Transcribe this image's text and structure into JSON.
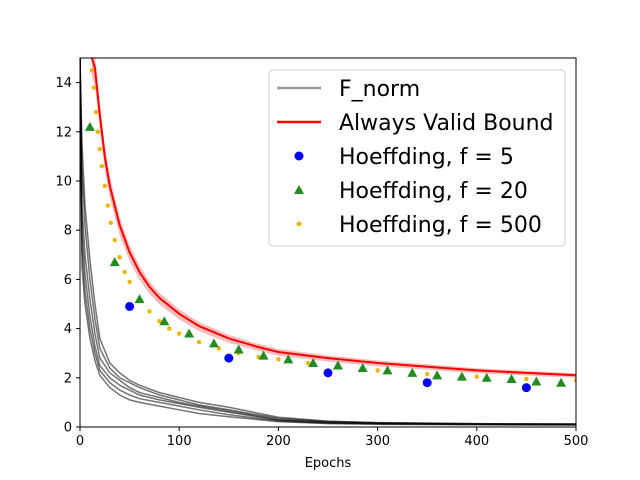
{
  "chart_data": {
    "type": "line",
    "xlabel": "Epochs",
    "ylabel": "",
    "xlim": [
      0,
      500
    ],
    "ylim": [
      0,
      15
    ],
    "x_ticks": [
      "0",
      "100",
      "200",
      "300",
      "400",
      "500"
    ],
    "y_ticks": [
      "0",
      "2",
      "4",
      "6",
      "8",
      "10",
      "12",
      "14"
    ],
    "x_tick_values": [
      0,
      100,
      200,
      300,
      400,
      500
    ],
    "y_tick_values": [
      0,
      2,
      4,
      6,
      8,
      10,
      12,
      14
    ],
    "legend_position": "top-right",
    "series": [
      {
        "name": "F_norm",
        "kind": "line",
        "color": "#000000",
        "legend_color": "#999999",
        "runs": [
          {
            "x": [
              0,
              2,
              5,
              10,
              15,
              20,
              30,
              40,
              50,
              60,
              80,
              100,
              120,
              150,
              200,
              250,
              300,
              400,
              500
            ],
            "y": [
              15,
              10.5,
              8.2,
              6.0,
              4.4,
              3.2,
              2.4,
              2.0,
              1.8,
              1.6,
              1.3,
              1.1,
              0.9,
              0.7,
              0.35,
              0.22,
              0.17,
              0.13,
              0.12
            ]
          },
          {
            "x": [
              0,
              2,
              5,
              10,
              15,
              20,
              30,
              40,
              50,
              60,
              80,
              100,
              120,
              150,
              200,
              250,
              300,
              400,
              500
            ],
            "y": [
              15,
              9.0,
              7.0,
              5.2,
              3.8,
              2.8,
              2.2,
              1.9,
              1.6,
              1.4,
              1.2,
              1.0,
              0.85,
              0.65,
              0.3,
              0.2,
              0.15,
              0.12,
              0.11
            ]
          },
          {
            "x": [
              0,
              2,
              5,
              10,
              15,
              20,
              30,
              40,
              50,
              60,
              80,
              100,
              120,
              150,
              200,
              250,
              300,
              400,
              500
            ],
            "y": [
              15,
              8.0,
              6.2,
              4.5,
              3.3,
              2.5,
              2.0,
              1.7,
              1.5,
              1.3,
              1.1,
              0.95,
              0.8,
              0.6,
              0.28,
              0.18,
              0.14,
              0.11,
              0.1
            ]
          },
          {
            "x": [
              0,
              2,
              5,
              10,
              15,
              20,
              30,
              40,
              50,
              60,
              80,
              100,
              120,
              150,
              200,
              250,
              300,
              400,
              500
            ],
            "y": [
              15,
              7.2,
              5.5,
              4.0,
              3.0,
              2.3,
              1.8,
              1.5,
              1.3,
              1.15,
              1.0,
              0.85,
              0.7,
              0.5,
              0.25,
              0.16,
              0.13,
              0.1,
              0.09
            ]
          },
          {
            "x": [
              0,
              2,
              5,
              10,
              15,
              20,
              30,
              40,
              50,
              60,
              80,
              100,
              120,
              150,
              200,
              250,
              300,
              400,
              500
            ],
            "y": [
              15,
              6.5,
              5.0,
              3.6,
              2.7,
              2.1,
              1.6,
              1.3,
              1.1,
              1.0,
              0.85,
              0.7,
              0.55,
              0.42,
              0.22,
              0.14,
              0.11,
              0.09,
              0.08
            ]
          },
          {
            "x": [
              0,
              2,
              5,
              10,
              15,
              20,
              30,
              40,
              50,
              60,
              80,
              100,
              120,
              150,
              200,
              250,
              300,
              400,
              500
            ],
            "y": [
              15,
              11.5,
              9.0,
              6.8,
              5.0,
              3.6,
              2.6,
              2.2,
              1.9,
              1.7,
              1.4,
              1.2,
              1.0,
              0.8,
              0.4,
              0.24,
              0.18,
              0.14,
              0.12
            ]
          }
        ]
      },
      {
        "name": "Always Valid Bound",
        "kind": "line",
        "color": "#ff0000",
        "band_color": "#f4a0a0",
        "x": [
          12,
          15,
          20,
          25,
          30,
          40,
          50,
          60,
          70,
          80,
          100,
          120,
          150,
          180,
          200,
          250,
          300,
          350,
          400,
          450,
          500
        ],
        "y": [
          15,
          14.6,
          12.7,
          11.0,
          9.8,
          8.2,
          7.1,
          6.3,
          5.7,
          5.25,
          4.6,
          4.1,
          3.6,
          3.25,
          3.05,
          2.8,
          2.6,
          2.45,
          2.3,
          2.2,
          2.1
        ]
      },
      {
        "name": "Hoeffding, f = 5",
        "kind": "scatter",
        "marker": "circle",
        "color": "#0000ff",
        "x": [
          50,
          150,
          250,
          350,
          450
        ],
        "y": [
          4.9,
          2.8,
          2.2,
          1.8,
          1.6
        ]
      },
      {
        "name": "Hoeffding, f = 20",
        "kind": "scatter",
        "marker": "triangle",
        "color": "#228b22",
        "x": [
          10,
          35,
          60,
          85,
          110,
          135,
          160,
          185,
          210,
          235,
          260,
          285,
          310,
          335,
          360,
          385,
          410,
          435,
          460,
          485
        ],
        "y": [
          12.2,
          6.7,
          5.2,
          4.3,
          3.8,
          3.4,
          3.15,
          2.9,
          2.75,
          2.6,
          2.5,
          2.4,
          2.3,
          2.2,
          2.1,
          2.05,
          2.0,
          1.95,
          1.85,
          1.8
        ]
      },
      {
        "name": "Hoeffding, f = 500",
        "kind": "scatter",
        "marker": "dot",
        "color": "#f0b400",
        "x": [
          12,
          14,
          16,
          18,
          20,
          22,
          25,
          28,
          31,
          35,
          40,
          45,
          50,
          60,
          70,
          80,
          90,
          100,
          120,
          140,
          160,
          180,
          200,
          230,
          260,
          300,
          350,
          400,
          450,
          500
        ],
        "y": [
          14.5,
          13.8,
          12.8,
          12.0,
          11.3,
          10.6,
          9.8,
          9.0,
          8.3,
          7.6,
          6.9,
          6.3,
          5.9,
          5.2,
          4.7,
          4.3,
          4.0,
          3.8,
          3.45,
          3.2,
          3.0,
          2.85,
          2.75,
          2.6,
          2.45,
          2.3,
          2.15,
          2.05,
          1.95,
          1.9
        ]
      }
    ]
  }
}
